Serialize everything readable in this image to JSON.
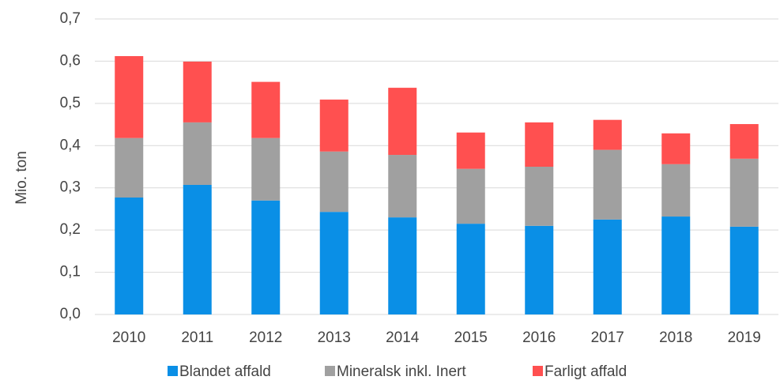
{
  "chart_data": {
    "type": "stacked_bar",
    "y_label": "Mio. ton",
    "categories": [
      "2010",
      "2011",
      "2012",
      "2013",
      "2014",
      "2015",
      "2016",
      "2017",
      "2018",
      "2019"
    ],
    "series": [
      {
        "name": "Blandet affald",
        "color": "#0a8fe6",
        "values": [
          0.277,
          0.307,
          0.27,
          0.243,
          0.23,
          0.215,
          0.21,
          0.225,
          0.232,
          0.208
        ]
      },
      {
        "name": "Mineralsk inkl. Inert",
        "color": "#a0a0a0",
        "values": [
          0.141,
          0.148,
          0.148,
          0.143,
          0.148,
          0.13,
          0.14,
          0.165,
          0.124,
          0.161
        ]
      },
      {
        "name": "Farligt affald",
        "color": "#ff5050",
        "values": [
          0.194,
          0.144,
          0.133,
          0.123,
          0.159,
          0.086,
          0.105,
          0.071,
          0.073,
          0.082
        ]
      }
    ],
    "ylim": [
      0,
      0.7
    ],
    "yticks": [
      {
        "value": 0,
        "label": "0,0"
      },
      {
        "value": 0.1,
        "label": "0,1"
      },
      {
        "value": 0.2,
        "label": "0,2"
      },
      {
        "value": 0.3,
        "label": "0,3"
      },
      {
        "value": 0.4,
        "label": "0,4"
      },
      {
        "value": 0.5,
        "label": "0,5"
      },
      {
        "value": 0.6,
        "label": "0,6"
      },
      {
        "value": 0.7,
        "label": "0,7"
      }
    ],
    "grid": true,
    "legend": "bottom"
  }
}
